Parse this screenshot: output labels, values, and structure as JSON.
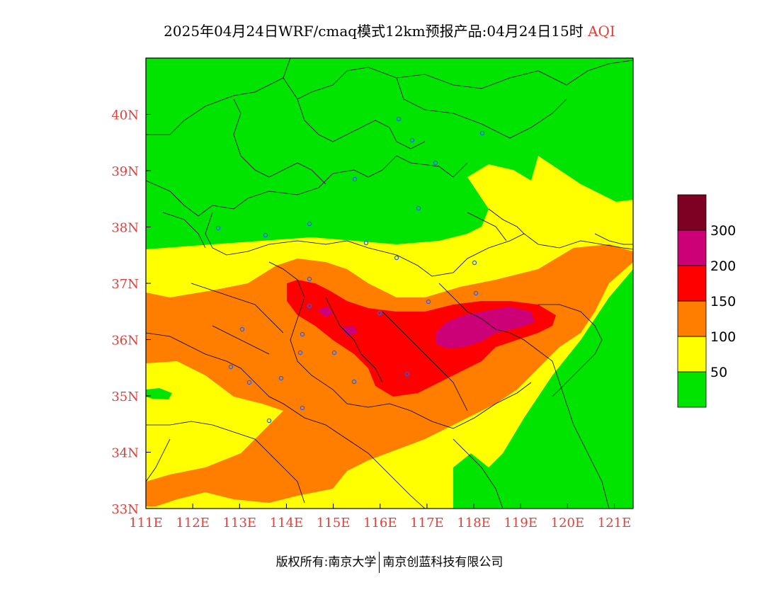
{
  "title": {
    "main": "2025年04月24日WRF/cmaq模式12km预报产品:04月24日15时",
    "variable": "AQI"
  },
  "map": {
    "lon_range": [
      111,
      121.4
    ],
    "lat_range": [
      33,
      41
    ],
    "x_ticks": [
      "111E",
      "112E",
      "113E",
      "114E",
      "115E",
      "116E",
      "117E",
      "118E",
      "119E",
      "120E",
      "121E"
    ],
    "y_ticks": [
      "33N",
      "34N",
      "35N",
      "36N",
      "37N",
      "38N",
      "39N",
      "40N"
    ],
    "label_color": "#e0403a"
  },
  "colorbar": {
    "colors": [
      "#00e400",
      "#ffff00",
      "#ff7e00",
      "#ff0000",
      "#cc0077",
      "#7e0023"
    ],
    "labels": [
      "50",
      "100",
      "150",
      "200",
      "300"
    ]
  },
  "footer": {
    "left": "版权所有:南京大学",
    "right": "南京创蓝科技有限公司"
  }
}
